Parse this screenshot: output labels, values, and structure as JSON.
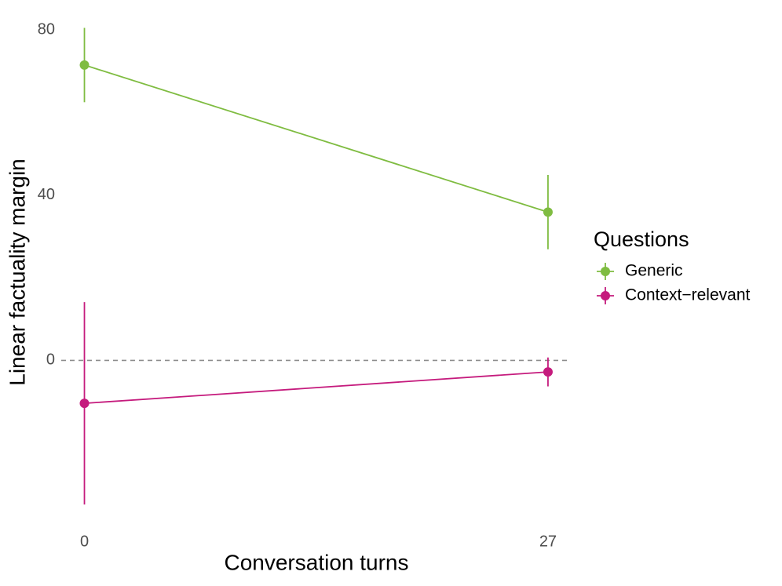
{
  "chart_data": {
    "type": "line",
    "x_label": "Conversation turns",
    "y_label": "Linear factuality margin",
    "legend_title": "Questions",
    "legend_position": "right",
    "x": [
      0,
      27
    ],
    "xlim": [
      -1.35,
      28.1
    ],
    "xticks": [
      0,
      27
    ],
    "ylim": [
      -40,
      82.5
    ],
    "yticks": [
      0,
      40,
      80
    ],
    "reference_line": 0,
    "series": [
      {
        "name": "Generic",
        "color": "#7fbc41",
        "values": [
          71.5,
          35.9
        ],
        "errors": [
          9,
          9
        ]
      },
      {
        "name": "Context−relevant",
        "color": "#c51b7d",
        "values": [
          -10.4,
          -2.8
        ],
        "errors": [
          24.5,
          3.5
        ]
      }
    ]
  }
}
